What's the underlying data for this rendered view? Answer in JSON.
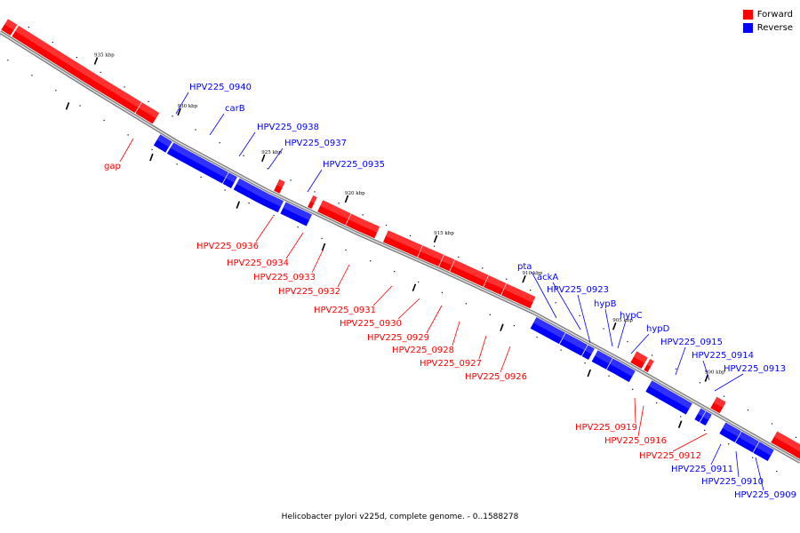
{
  "legend": {
    "forward_label": "Forward",
    "reverse_label": "Reverse",
    "forward_color": "#ff0000",
    "reverse_color": "#0000ff"
  },
  "caption": "Helicobacter pylori v225d, complete genome. - 0..1588278",
  "ticks": [
    "935 kbp",
    "930 kbp",
    "925 kbp",
    "920 kbp",
    "915 kbp",
    "910 kbp",
    "905 kbp",
    "900 kbp"
  ],
  "genes": [
    {
      "name": "gap",
      "strand": "Forward"
    },
    {
      "name": "HPV225_0940",
      "strand": "Reverse"
    },
    {
      "name": "carB",
      "strand": "Reverse"
    },
    {
      "name": "HPV225_0938",
      "strand": "Reverse"
    },
    {
      "name": "HPV225_0937",
      "strand": "Reverse"
    },
    {
      "name": "HPV225_0935",
      "strand": "Reverse"
    },
    {
      "name": "HPV225_0936",
      "strand": "Forward"
    },
    {
      "name": "HPV225_0934",
      "strand": "Forward"
    },
    {
      "name": "HPV225_0933",
      "strand": "Forward"
    },
    {
      "name": "HPV225_0932",
      "strand": "Forward"
    },
    {
      "name": "HPV225_0931",
      "strand": "Forward"
    },
    {
      "name": "HPV225_0930",
      "strand": "Forward"
    },
    {
      "name": "HPV225_0929",
      "strand": "Forward"
    },
    {
      "name": "HPV225_0928",
      "strand": "Forward"
    },
    {
      "name": "HPV225_0927",
      "strand": "Forward"
    },
    {
      "name": "HPV225_0926",
      "strand": "Forward"
    },
    {
      "name": "pta",
      "strand": "Reverse"
    },
    {
      "name": "ackA",
      "strand": "Reverse"
    },
    {
      "name": "HPV225_0923",
      "strand": "Reverse"
    },
    {
      "name": "hypB",
      "strand": "Reverse"
    },
    {
      "name": "hypC",
      "strand": "Reverse"
    },
    {
      "name": "hypD",
      "strand": "Reverse"
    },
    {
      "name": "HPV225_0915",
      "strand": "Reverse"
    },
    {
      "name": "HPV225_0914",
      "strand": "Reverse"
    },
    {
      "name": "HPV225_0913",
      "strand": "Reverse"
    },
    {
      "name": "HPV225_0919",
      "strand": "Forward"
    },
    {
      "name": "HPV225_0916",
      "strand": "Forward"
    },
    {
      "name": "HPV225_0912",
      "strand": "Forward"
    },
    {
      "name": "HPV225_0911",
      "strand": "Reverse"
    },
    {
      "name": "HPV225_0910",
      "strand": "Reverse"
    },
    {
      "name": "HPV225_0909",
      "strand": "Reverse"
    }
  ]
}
